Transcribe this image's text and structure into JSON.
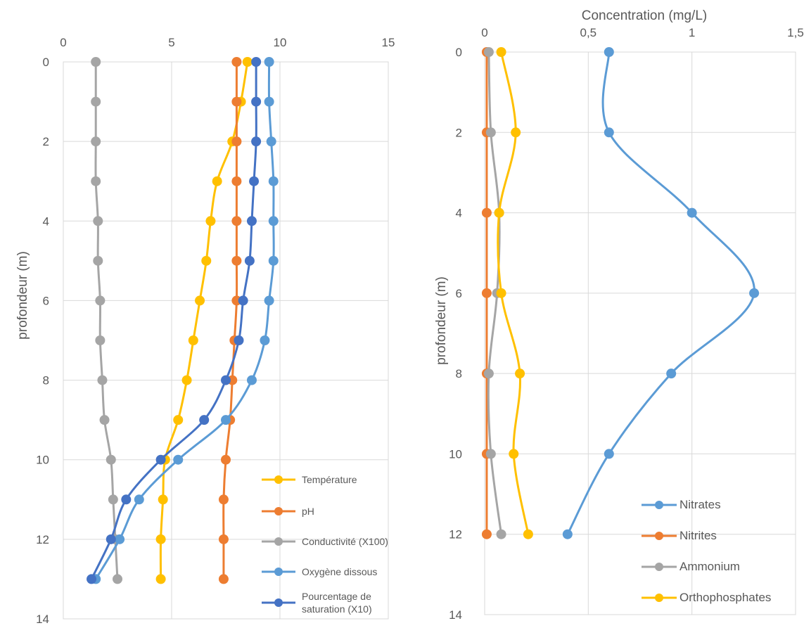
{
  "chart_data": [
    {
      "type": "line",
      "orientation": "depth-profile",
      "title": "",
      "xlabel": "",
      "ylabel": "profondeur (m)",
      "xlim": [
        0,
        15
      ],
      "ylim": [
        0,
        14
      ],
      "y_inverted": true,
      "x_axis_position": "top",
      "x_ticks": [
        "0",
        "5",
        "10",
        "15"
      ],
      "y_ticks": [
        "0",
        "2",
        "4",
        "6",
        "8",
        "10",
        "12",
        "14"
      ],
      "grid": true,
      "legend_position": "bottom-right inside",
      "depth": [
        0,
        1,
        2,
        3,
        4,
        5,
        6,
        7,
        8,
        9,
        10,
        11,
        12,
        13
      ],
      "series": [
        {
          "name": "Température",
          "color": "#FFC000",
          "values": [
            8.5,
            8.2,
            7.8,
            7.1,
            6.8,
            6.6,
            6.3,
            6.0,
            5.7,
            5.3,
            4.7,
            4.6,
            4.5,
            4.5
          ]
        },
        {
          "name": "pH",
          "color": "#ED7D31",
          "values": [
            8.0,
            8.0,
            8.0,
            8.0,
            8.0,
            8.0,
            8.0,
            7.9,
            7.8,
            7.7,
            7.5,
            7.4,
            7.4,
            7.4
          ]
        },
        {
          "name": "Conductivité (X100)",
          "color": "#A5A5A5",
          "values": [
            1.5,
            1.5,
            1.5,
            1.5,
            1.6,
            1.6,
            1.7,
            1.7,
            1.8,
            1.9,
            2.2,
            2.3,
            2.4,
            2.5
          ]
        },
        {
          "name": "Oxygène dissous",
          "color": "#5B9BD5",
          "values": [
            9.5,
            9.5,
            9.6,
            9.7,
            9.7,
            9.7,
            9.5,
            9.3,
            8.7,
            7.5,
            5.3,
            3.5,
            2.6,
            1.5
          ]
        },
        {
          "name": "Pourcentage de saturation (X10)",
          "color": "#4472C4",
          "legend_lines": [
            "Pourcentage de",
            "saturation (X10)"
          ],
          "values": [
            8.9,
            8.9,
            8.9,
            8.8,
            8.7,
            8.6,
            8.3,
            8.1,
            7.5,
            6.5,
            4.5,
            2.9,
            2.2,
            1.3
          ]
        }
      ]
    },
    {
      "type": "line",
      "orientation": "depth-profile",
      "title": "",
      "xlabel": "Concentration (mg/L)",
      "ylabel": "profondeur (m)",
      "xlim": [
        0,
        1.5
      ],
      "ylim": [
        0,
        14
      ],
      "y_inverted": true,
      "x_axis_position": "top",
      "x_ticks": [
        "0",
        "0,5",
        "1",
        "1,5"
      ],
      "y_ticks": [
        "0",
        "2",
        "4",
        "6",
        "8",
        "10",
        "12",
        "14"
      ],
      "grid": true,
      "legend_position": "bottom-right inside",
      "depth": [
        0,
        2,
        4,
        6,
        8,
        10,
        12
      ],
      "series": [
        {
          "name": "Nitrates",
          "color": "#5B9BD5",
          "values": [
            0.6,
            0.6,
            1.0,
            1.3,
            0.9,
            0.6,
            0.4
          ]
        },
        {
          "name": "Nitrites",
          "color": "#ED7D31",
          "values": [
            0.01,
            0.01,
            0.01,
            0.01,
            0.01,
            0.01,
            0.01
          ]
        },
        {
          "name": "Ammonium",
          "color": "#A5A5A5",
          "values": [
            0.02,
            0.03,
            0.07,
            0.06,
            0.02,
            0.03,
            0.08
          ]
        },
        {
          "name": "Orthophosphates",
          "color": "#FFC000",
          "values": [
            0.08,
            0.15,
            0.07,
            0.08,
            0.17,
            0.14,
            0.21
          ]
        }
      ]
    }
  ]
}
